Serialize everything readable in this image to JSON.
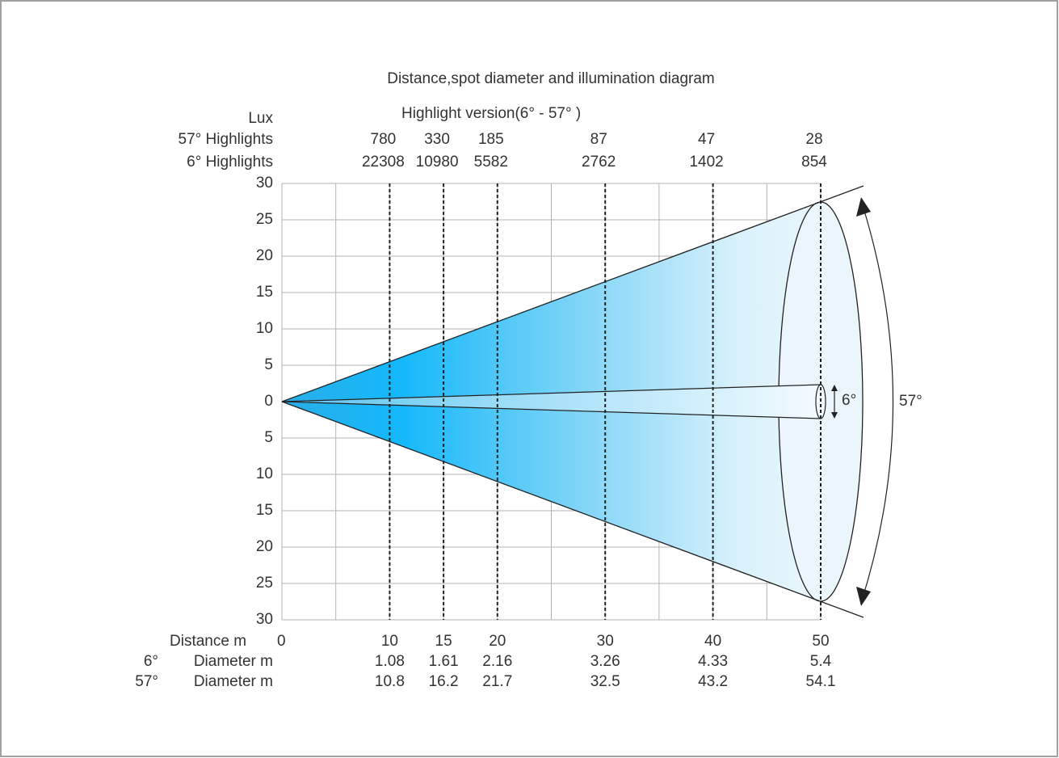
{
  "title": "Distance,spot diameter and illumination diagram",
  "subtitle": "Highlight version(6°  -  57°  )",
  "lux_label": "Lux",
  "lux_rows": [
    {
      "label": "57° Highlights",
      "values": [
        780,
        330,
        185,
        87,
        47,
        28
      ]
    },
    {
      "label": "6° Highlights",
      "values": [
        22308,
        10980,
        5582,
        2762,
        1402,
        854
      ]
    }
  ],
  "y_axis": {
    "labels": [
      30,
      25,
      20,
      15,
      10,
      5,
      0,
      5,
      10,
      15,
      20,
      25,
      30
    ]
  },
  "distance": {
    "label": "Distance m",
    "values": [
      0,
      10,
      15,
      20,
      30,
      40,
      50
    ]
  },
  "diameters": [
    {
      "angle": "6°",
      "label": "Diameter m",
      "values": [
        1.08,
        1.61,
        2.16,
        3.26,
        4.33,
        5.4
      ]
    },
    {
      "angle": "57°",
      "label": "Diameter m",
      "values": [
        10.8,
        16.2,
        21.7,
        32.5,
        43.2,
        54.1
      ]
    }
  ],
  "angle_labels": {
    "narrow": "6°",
    "wide": "57°"
  }
}
